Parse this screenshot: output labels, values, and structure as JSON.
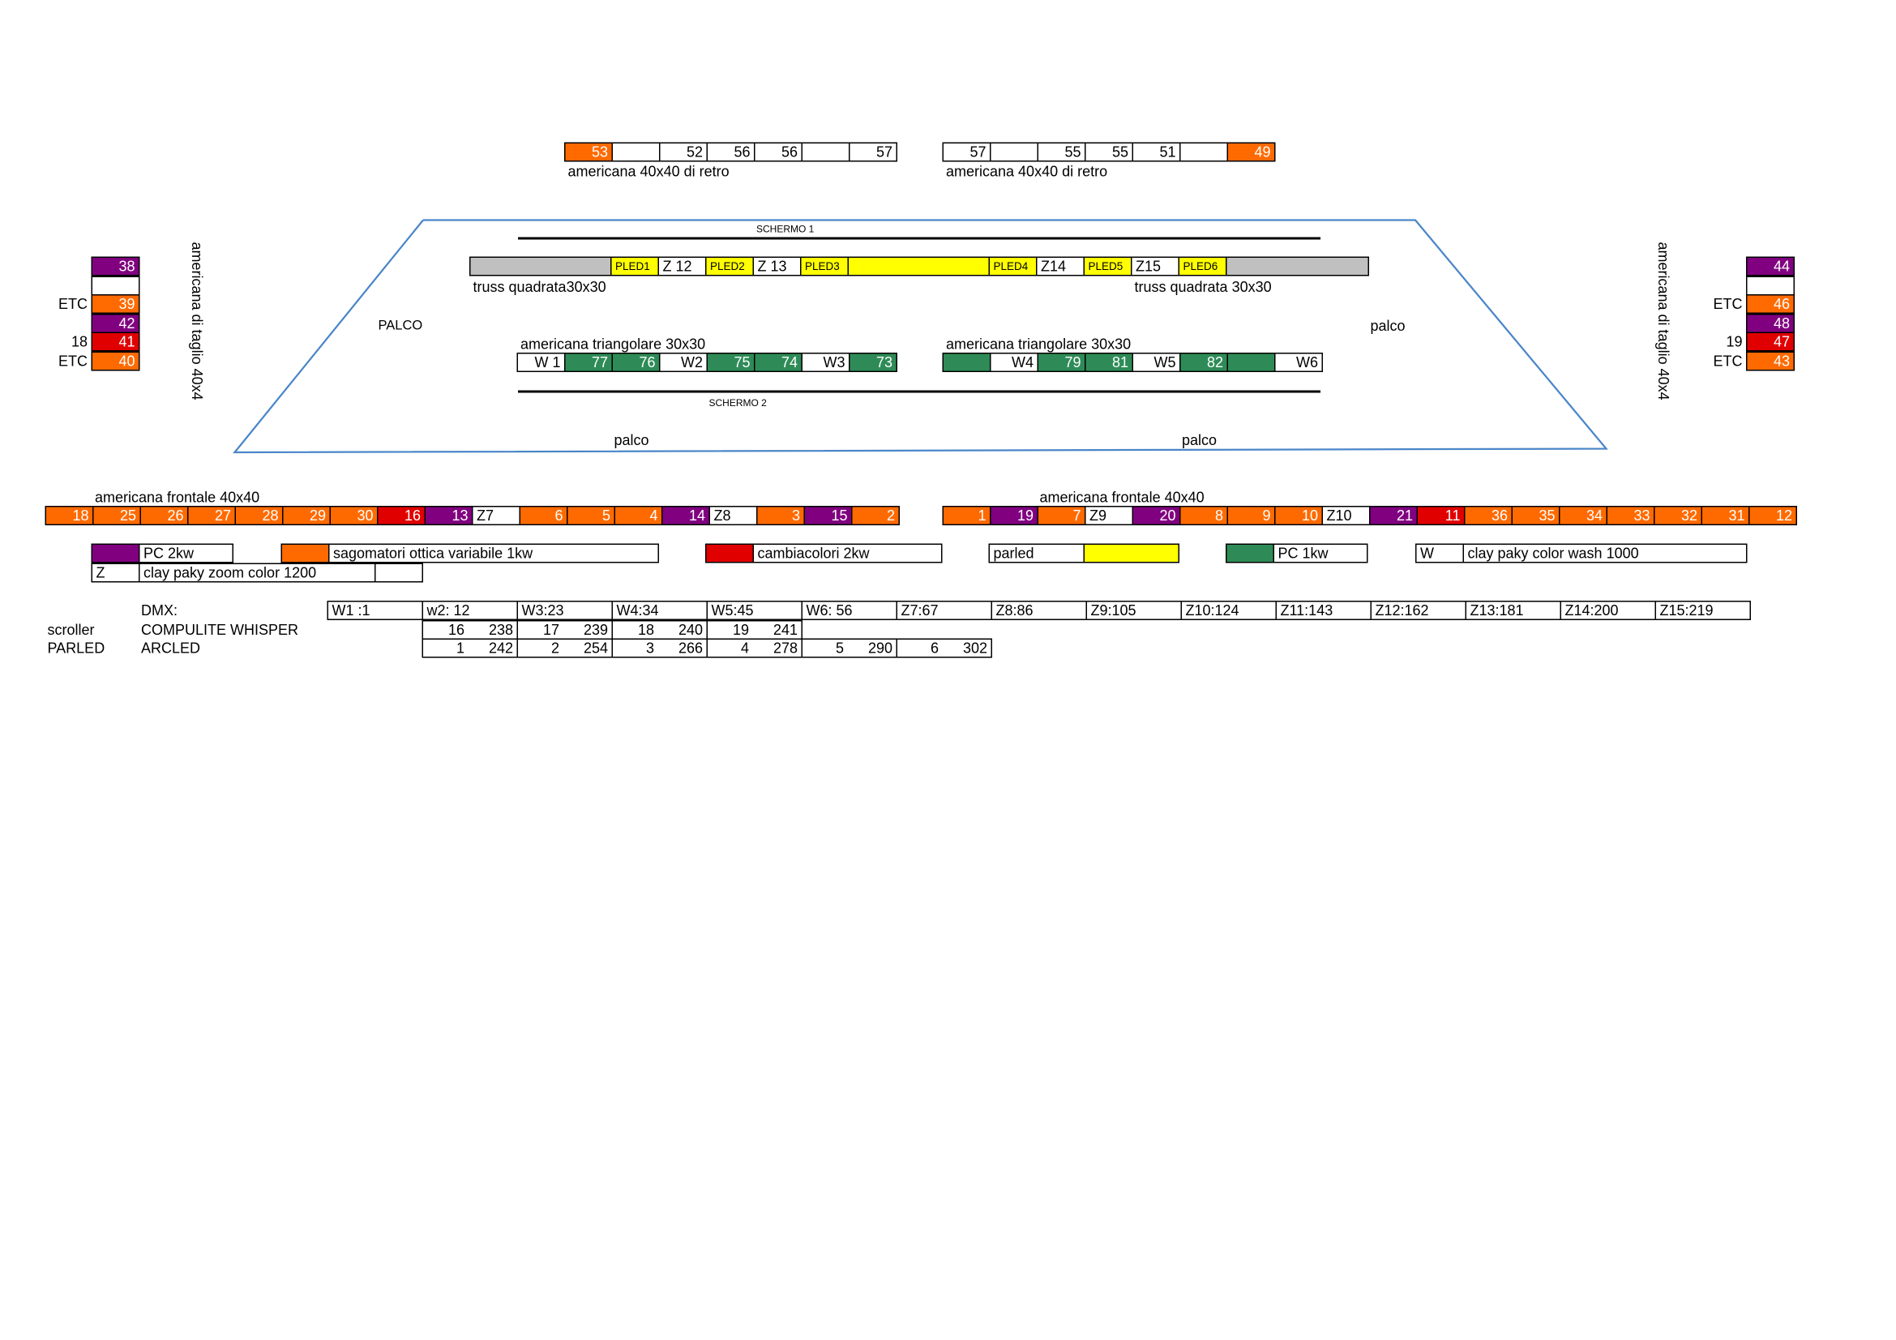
{
  "colors": {
    "orange": "#ff6a00",
    "purple": "#800080",
    "red": "#e00000",
    "green": "#2e8b57",
    "yellow": "#ffff00",
    "gray": "#c0c0c0",
    "stage_line": "#4a86c8"
  },
  "rear_left": {
    "cells": [
      {
        "c": "O",
        "t": "53"
      },
      {
        "c": "W",
        "t": ""
      },
      {
        "c": "W",
        "t": "52"
      },
      {
        "c": "W",
        "t": "56"
      },
      {
        "c": "W",
        "t": "56"
      },
      {
        "c": "W",
        "t": ""
      },
      {
        "c": "W",
        "t": "57"
      }
    ],
    "label": "americana 40x40 di retro"
  },
  "rear_right": {
    "cells": [
      {
        "c": "W",
        "t": "57"
      },
      {
        "c": "W",
        "t": ""
      },
      {
        "c": "W",
        "t": "55"
      },
      {
        "c": "W",
        "t": "55"
      },
      {
        "c": "W",
        "t": "51"
      },
      {
        "c": "W",
        "t": ""
      },
      {
        "c": "O",
        "t": "49"
      }
    ],
    "label": "americana 40x40 di retro"
  },
  "screen1": "SCHERMO 1",
  "screen2": "SCHERMO 2",
  "truss": {
    "cells": [
      {
        "c": "S",
        "t": ""
      },
      {
        "c": "Y",
        "t": "PLED1",
        "sm": 1
      },
      {
        "c": "W",
        "t": "Z 12"
      },
      {
        "c": "Y",
        "t": "PLED2",
        "sm": 1
      },
      {
        "c": "W",
        "t": "Z 13"
      },
      {
        "c": "Y",
        "t": "PLED3",
        "sm": 1
      },
      {
        "c": "Y",
        "t": ""
      },
      {
        "c": "Y",
        "t": "PLED4",
        "sm": 1
      },
      {
        "c": "W",
        "t": "Z14"
      },
      {
        "c": "Y",
        "t": "PLED5",
        "sm": 1
      },
      {
        "c": "W",
        "t": "Z15"
      },
      {
        "c": "Y",
        "t": "PLED6",
        "sm": 1
      },
      {
        "c": "S",
        "t": ""
      }
    ],
    "label_left": "truss  quadrata30x30",
    "label_right": "truss quadrata 30x30"
  },
  "stage_labels": {
    "top_left": "PALCO",
    "top_right": "palco",
    "bottom_left": "palco",
    "bottom_right": "palco"
  },
  "tri_left": {
    "label": "americana triangolare 30x30",
    "cells": [
      {
        "c": "W",
        "t": "W 1"
      },
      {
        "c": "G",
        "t": "77"
      },
      {
        "c": "G",
        "t": "76"
      },
      {
        "c": "W",
        "t": "W2"
      },
      {
        "c": "G",
        "t": "75"
      },
      {
        "c": "G",
        "t": "74"
      },
      {
        "c": "W",
        "t": "W3"
      },
      {
        "c": "G",
        "t": "73"
      }
    ]
  },
  "tri_right": {
    "label": "americana triangolare 30x30",
    "cells": [
      {
        "c": "G",
        "t": ""
      },
      {
        "c": "W",
        "t": "W4"
      },
      {
        "c": "G",
        "t": "79"
      },
      {
        "c": "G",
        "t": "81"
      },
      {
        "c": "W",
        "t": "W5"
      },
      {
        "c": "G",
        "t": "82"
      },
      {
        "c": "G",
        "t": ""
      },
      {
        "c": "W",
        "t": "W6"
      }
    ]
  },
  "side_left": {
    "label": "americana di taglio 40x4",
    "cells": [
      {
        "c": "P",
        "t": "38"
      },
      {
        "c": "W",
        "t": ""
      },
      {
        "c": "O",
        "t": "39"
      },
      {
        "c": "P",
        "t": "42"
      },
      {
        "c": "R",
        "t": "41"
      },
      {
        "c": "O",
        "t": "40"
      }
    ],
    "notes": [
      "",
      "",
      "ETC",
      "",
      "18",
      "ETC"
    ]
  },
  "side_right": {
    "label": "americana di taglio 40x4",
    "cells": [
      {
        "c": "P",
        "t": "44"
      },
      {
        "c": "W",
        "t": ""
      },
      {
        "c": "O",
        "t": "46"
      },
      {
        "c": "P",
        "t": "48"
      },
      {
        "c": "R",
        "t": "47"
      },
      {
        "c": "O",
        "t": "43"
      }
    ],
    "notes": [
      "",
      "",
      "ETC",
      "",
      "19",
      "ETC"
    ]
  },
  "front_left": {
    "label": "americana frontale 40x40",
    "cells": [
      {
        "c": "O",
        "t": "18"
      },
      {
        "c": "O",
        "t": "25"
      },
      {
        "c": "O",
        "t": "26"
      },
      {
        "c": "O",
        "t": "27"
      },
      {
        "c": "O",
        "t": "28"
      },
      {
        "c": "O",
        "t": "29"
      },
      {
        "c": "O",
        "t": "30"
      },
      {
        "c": "R",
        "t": "16"
      },
      {
        "c": "P",
        "t": "13"
      },
      {
        "c": "W",
        "t": "Z7",
        "l": 1
      },
      {
        "c": "O",
        "t": "6"
      },
      {
        "c": "O",
        "t": "5"
      },
      {
        "c": "O",
        "t": "4"
      },
      {
        "c": "P",
        "t": "14"
      },
      {
        "c": "W",
        "t": "Z8",
        "l": 1
      },
      {
        "c": "O",
        "t": "3"
      },
      {
        "c": "P",
        "t": "15"
      },
      {
        "c": "O",
        "t": "2"
      }
    ]
  },
  "front_right": {
    "label": "americana frontale 40x40",
    "cells": [
      {
        "c": "O",
        "t": "1"
      },
      {
        "c": "P",
        "t": "19"
      },
      {
        "c": "O",
        "t": "7"
      },
      {
        "c": "W",
        "t": "Z9",
        "l": 1
      },
      {
        "c": "P",
        "t": "20"
      },
      {
        "c": "O",
        "t": "8"
      },
      {
        "c": "O",
        "t": "9"
      },
      {
        "c": "O",
        "t": "10"
      },
      {
        "c": "W",
        "t": "Z10",
        "l": 1
      },
      {
        "c": "P",
        "t": "21"
      },
      {
        "c": "R",
        "t": "11"
      },
      {
        "c": "O",
        "t": "36"
      },
      {
        "c": "O",
        "t": "35"
      },
      {
        "c": "O",
        "t": "34"
      },
      {
        "c": "O",
        "t": "33"
      },
      {
        "c": "O",
        "t": "32"
      },
      {
        "c": "O",
        "t": "31"
      },
      {
        "c": "O",
        "t": "12"
      }
    ]
  },
  "legend": {
    "pc2kw": "PC 2kw",
    "sagomatori": "sagomatori ottica variabile 1kw",
    "cambiacolori": "cambiacolori 2kw",
    "parled": "parled",
    "pc1kw": "PC 1kw",
    "w_key": "W",
    "w_desc": "clay paky color  wash 1000",
    "z_key": "Z",
    "z_desc": "clay paky zoom color 1200"
  },
  "dmx": {
    "title": "DMX:",
    "row1": [
      "W1 :1",
      "w2: 12",
      "W3:23",
      "W4:34",
      "W5:45",
      "W6: 56",
      "Z7:67",
      "Z8:86",
      "Z9:105",
      "Z10:124",
      "Z11:143",
      "Z12:162",
      "Z13:181",
      "Z14:200",
      "Z15:219"
    ],
    "scroller_label": "scroller",
    "scroller_model": "COMPULITE WHISPER",
    "scroller": [
      [
        "16",
        "238"
      ],
      [
        "17",
        "239"
      ],
      [
        "18",
        "240"
      ],
      [
        "19",
        "241"
      ]
    ],
    "parled_label": "PARLED",
    "parled_model": "ARCLED",
    "parled": [
      [
        "1",
        "242"
      ],
      [
        "2",
        "254"
      ],
      [
        "3",
        "266"
      ],
      [
        "4",
        "278"
      ],
      [
        "5",
        "290"
      ],
      [
        "6",
        "302"
      ]
    ]
  }
}
